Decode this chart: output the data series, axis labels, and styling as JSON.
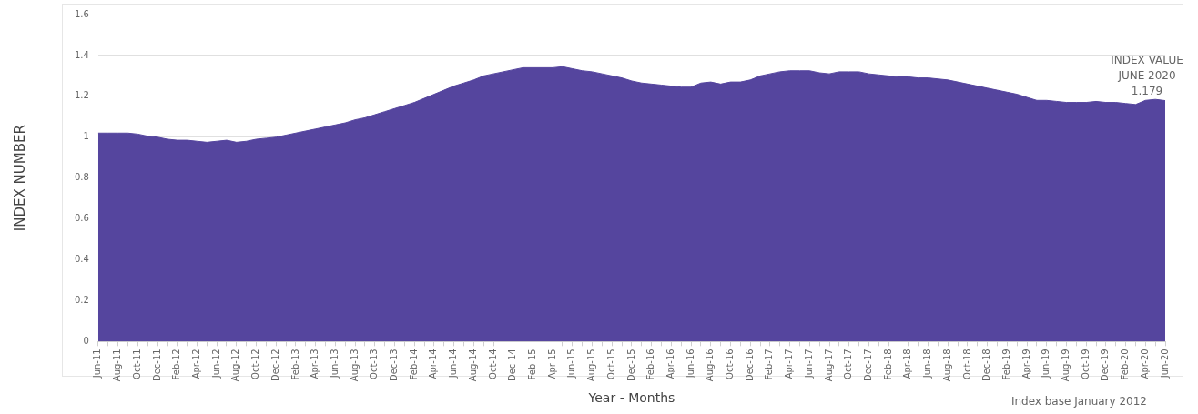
{
  "chart_data": {
    "type": "area",
    "xlabel": "Year - Months",
    "ylabel": "INDEX NUMBER",
    "categories": [
      "Jun-11",
      null,
      "Aug-11",
      null,
      "Oct-11",
      null,
      "Dec-11",
      null,
      "Feb-12",
      null,
      "Apr-12",
      null,
      "Jun-12",
      null,
      "Aug-12",
      null,
      "Oct-12",
      null,
      "Dec-12",
      null,
      "Feb-13",
      null,
      "Apr-13",
      null,
      "Jun-13",
      null,
      "Aug-13",
      null,
      "Oct-13",
      null,
      "Dec-13",
      null,
      "Feb-14",
      null,
      "Apr-14",
      null,
      "Jun-14",
      null,
      "Aug-14",
      null,
      "Oct-14",
      null,
      "Dec-14",
      null,
      "Feb-15",
      null,
      "Apr-15",
      null,
      "Jun-15",
      null,
      "Aug-15",
      null,
      "Oct-15",
      null,
      "Dec-15",
      null,
      "Feb-16",
      null,
      "Apr-16",
      null,
      "Jun-16",
      null,
      "Aug-16",
      null,
      "Oct-16",
      null,
      "Dec-16",
      null,
      "Feb-17",
      null,
      "Apr-17",
      null,
      "Jun-17",
      null,
      "Aug-17",
      null,
      "Oct-17",
      null,
      "Dec-17",
      null,
      "Feb-18",
      null,
      "Apr-18",
      null,
      "Jun-18",
      null,
      "Aug-18",
      null,
      "Oct-18",
      null,
      "Dec-18",
      null,
      "Feb-19",
      null,
      "Apr-19",
      null,
      "Jun-19",
      null,
      "Aug-19",
      null,
      "Oct-19",
      null,
      "Dec-19",
      null,
      "Feb-20",
      null,
      "Apr-20",
      null,
      "Jun-20"
    ],
    "series": [
      {
        "color": "#55459e",
        "values": [
          1.02,
          1.02,
          1.02,
          1.02,
          1.015,
          1.005,
          1.0,
          0.99,
          0.985,
          0.985,
          0.98,
          0.975,
          0.98,
          0.985,
          0.975,
          0.98,
          0.99,
          0.995,
          1.0,
          1.01,
          1.02,
          1.03,
          1.04,
          1.05,
          1.06,
          1.07,
          1.085,
          1.095,
          1.11,
          1.125,
          1.14,
          1.155,
          1.17,
          1.19,
          1.21,
          1.23,
          1.25,
          1.265,
          1.28,
          1.3,
          1.31,
          1.32,
          1.33,
          1.34,
          1.34,
          1.34,
          1.34,
          1.345,
          1.335,
          1.325,
          1.32,
          1.31,
          1.3,
          1.29,
          1.275,
          1.265,
          1.26,
          1.255,
          1.25,
          1.245,
          1.245,
          1.265,
          1.27,
          1.26,
          1.27,
          1.27,
          1.28,
          1.3,
          1.31,
          1.32,
          1.325,
          1.325,
          1.325,
          1.315,
          1.31,
          1.32,
          1.32,
          1.32,
          1.31,
          1.305,
          1.3,
          1.295,
          1.295,
          1.29,
          1.29,
          1.285,
          1.28,
          1.27,
          1.26,
          1.25,
          1.24,
          1.23,
          1.22,
          1.21,
          1.195,
          1.18,
          1.18,
          1.175,
          1.17,
          1.17,
          1.17,
          1.175,
          1.17,
          1.17,
          1.165,
          1.16,
          1.18,
          1.185,
          1.179
        ]
      }
    ],
    "ylim": [
      0,
      1.6
    ],
    "yticks": [
      0,
      0.2,
      0.4,
      0.6,
      0.8,
      1,
      1.2,
      1.4,
      1.6
    ],
    "grid": "y",
    "legend": false,
    "annotations": [
      {
        "text": "INDEX VALUE\nJUNE 2020\n1.179",
        "x": "Jun-20",
        "y": 1.179
      },
      "Index base January 2012"
    ]
  }
}
